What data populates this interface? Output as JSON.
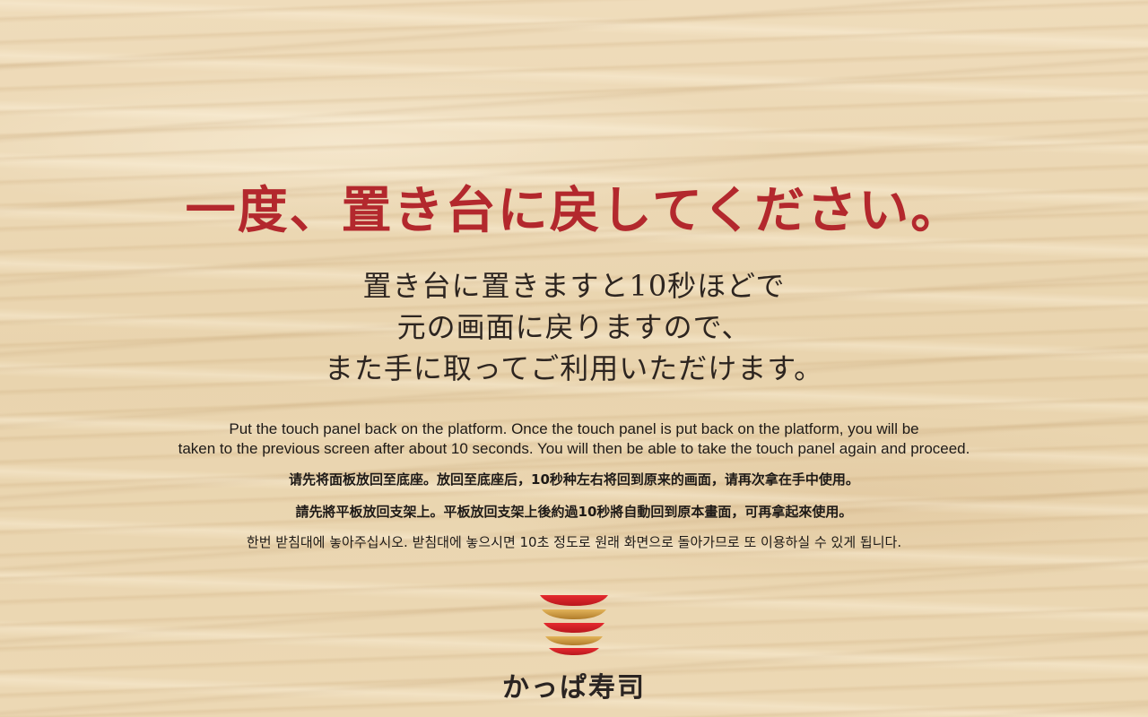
{
  "headline": "一度、置き台に戻してください。",
  "instructions_ja": [
    "置き台に置きますと10秒ほどで",
    "元の画面に戻りますので、",
    "また手に取ってご利用いただけます。"
  ],
  "instructions_en": [
    "Put the touch panel back on the platform. Once the touch panel is put back on the platform, you will be",
    "taken to the previous screen after about 10 seconds. You will then be able to take the touch panel again and proceed."
  ],
  "instructions_zh_hans": "请先将面板放回至底座。放回至底座后，10秒种左右将回到原来的画面，请再次拿在手中使用。",
  "instructions_zh_hant": "請先將平板放回支架上。平板放回支架上後約過10秒將自動回到原本畫面，可再拿起來使用。",
  "instructions_ko": "한번 받침대에 놓아주십시오. 받침대에 놓으시면 10초 정도로 원래 화면으로 돌아가므로 또 이용하실 수 있게 됩니다.",
  "logo": {
    "brand_name": "かっぱ寿司",
    "icon": "sushi-plate-stack-icon",
    "colors": {
      "red": "#d7232a",
      "gold": "#c9953a"
    }
  },
  "colors": {
    "headline": "#b3282d",
    "text": "#2d2520",
    "wood": "#ecd9b6"
  }
}
